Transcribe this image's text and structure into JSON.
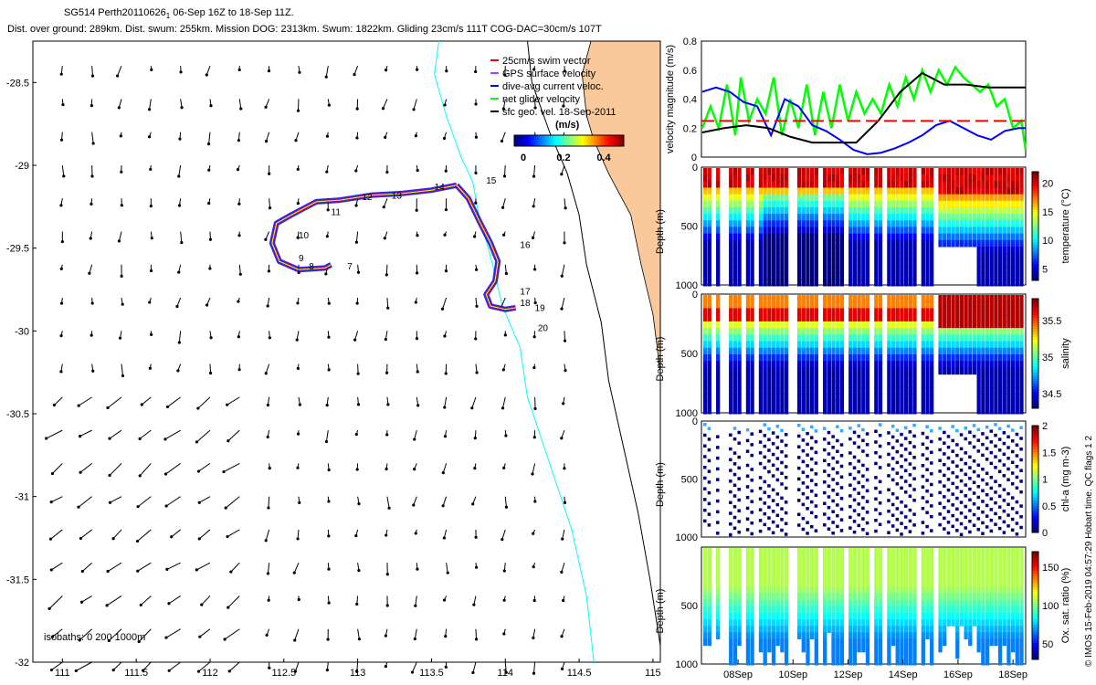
{
  "header": {
    "line1_part1": "SG514 Perth20110626",
    "line1_sub": "1",
    "line1_part2": " 06-Sep 16Z to 18-Sep 11Z.",
    "line2": "Dist. over ground: 289km. Dist. swum: 255km. Mission DOG: 2313km. Swum: 1822km. Gliding 23cm/s 111T COG-DAC=30cm/s 107T"
  },
  "credit": "© IMOS 15-Feb-2019 04:57:29 Hobart time. QC flags 1  2",
  "colors": {
    "land": "#f9c99b",
    "isobath_200": "#00ffff",
    "isobath_1000": "#000000",
    "track": "#ff0000",
    "dac": "#0000ff",
    "net_velocity": "#00ff00",
    "threshold": "#ff0000"
  },
  "chart_data": [
    {
      "type": "map",
      "name": "glider-track-map",
      "xlim": [
        110.8,
        115.05
      ],
      "ylim": [
        -32.0,
        -28.25
      ],
      "x_ticks": [
        "111",
        "111.5",
        "112",
        "112.5",
        "113",
        "113.5",
        "114",
        "114.5",
        "115"
      ],
      "y_ticks": [
        "-28.5",
        "-29",
        "-29.5",
        "-30",
        "-30.5",
        "-31",
        "-31.5",
        "-32"
      ],
      "legend": [
        "25cm/s swim vector",
        "GPS surface velocity",
        "dive-avg current veloc.",
        "net glider velocity",
        "sfc geo. vel. 18-Sep-2011"
      ],
      "colorbar_label": "(m/s)",
      "colorbar_ticks": [
        "0",
        "0.2",
        "0.4"
      ],
      "isobaths_label": "isobaths: 0   200  1000m",
      "track": [
        [
          113.67,
          -29.12
        ],
        [
          113.5,
          -29.15
        ],
        [
          113.3,
          -29.17
        ],
        [
          113.1,
          -29.18
        ],
        [
          112.88,
          -29.21
        ],
        [
          112.72,
          -29.22
        ],
        [
          112.55,
          -29.3
        ],
        [
          112.45,
          -29.35
        ],
        [
          112.42,
          -29.47
        ],
        [
          112.47,
          -29.58
        ],
        [
          112.6,
          -29.63
        ],
        [
          112.78,
          -29.62
        ],
        [
          112.82,
          -29.6
        ]
      ],
      "track2": [
        [
          113.67,
          -29.12
        ],
        [
          113.75,
          -29.2
        ],
        [
          113.82,
          -29.33
        ],
        [
          113.9,
          -29.47
        ],
        [
          113.95,
          -29.58
        ],
        [
          113.93,
          -29.7
        ],
        [
          113.87,
          -29.78
        ],
        [
          113.9,
          -29.85
        ],
        [
          114.0,
          -29.87
        ],
        [
          114.07,
          -29.86
        ]
      ],
      "day_labels": [
        {
          "t": "7",
          "lon": 112.93,
          "lat": -29.63
        },
        {
          "t": "8",
          "lon": 112.67,
          "lat": -29.63
        },
        {
          "t": "9",
          "lon": 112.6,
          "lat": -29.58
        },
        {
          "t": "10",
          "lon": 112.6,
          "lat": -29.44
        },
        {
          "t": "11",
          "lon": 112.82,
          "lat": -29.3
        },
        {
          "t": "12",
          "lon": 113.03,
          "lat": -29.21
        },
        {
          "t": "13",
          "lon": 113.23,
          "lat": -29.2
        },
        {
          "t": "14",
          "lon": 113.52,
          "lat": -29.15
        },
        {
          "t": "15",
          "lon": 113.87,
          "lat": -29.11
        },
        {
          "t": "16",
          "lon": 114.1,
          "lat": -29.5
        },
        {
          "t": "17",
          "lon": 114.1,
          "lat": -29.78
        },
        {
          "t": "18",
          "lon": 114.1,
          "lat": -29.85
        },
        {
          "t": "19",
          "lon": 114.2,
          "lat": -29.88
        },
        {
          "t": "20",
          "lon": 114.22,
          "lat": -30.0
        }
      ],
      "coastline": [
        [
          114.58,
          -28.25
        ],
        [
          114.52,
          -28.45
        ],
        [
          114.55,
          -28.7
        ],
        [
          114.6,
          -28.85
        ],
        [
          114.7,
          -29.05
        ],
        [
          114.85,
          -29.3
        ],
        [
          114.92,
          -29.6
        ],
        [
          115.0,
          -29.9
        ],
        [
          115.05,
          -30.25
        ],
        [
          115.05,
          -30.5
        ]
      ],
      "shelf_200": [
        [
          113.55,
          -28.25
        ],
        [
          113.52,
          -28.45
        ],
        [
          113.6,
          -28.7
        ],
        [
          113.7,
          -28.95
        ],
        [
          113.78,
          -29.1
        ],
        [
          113.82,
          -29.3
        ],
        [
          113.9,
          -29.55
        ],
        [
          113.98,
          -29.85
        ],
        [
          114.1,
          -30.1
        ],
        [
          114.15,
          -30.4
        ],
        [
          114.3,
          -30.8
        ],
        [
          114.45,
          -31.2
        ],
        [
          114.55,
          -31.6
        ],
        [
          114.6,
          -32.0
        ]
      ],
      "slope_1000": [
        [
          114.15,
          -28.25
        ],
        [
          114.18,
          -28.5
        ],
        [
          114.3,
          -28.8
        ],
        [
          114.42,
          -29.05
        ],
        [
          114.5,
          -29.3
        ],
        [
          114.55,
          -29.6
        ],
        [
          114.65,
          -29.95
        ],
        [
          114.7,
          -30.3
        ],
        [
          114.8,
          -30.7
        ],
        [
          114.9,
          -31.1
        ],
        [
          114.98,
          -31.5
        ],
        [
          115.05,
          -31.9
        ]
      ]
    },
    {
      "type": "line",
      "name": "velocity-magnitude",
      "ylabel": "velocity magnitude (m/s)",
      "ylim": [
        0,
        0.8
      ],
      "y_ticks": [
        "0",
        "0.2",
        "0.4",
        "0.6",
        "0.8"
      ],
      "x_range_days": [
        6.67,
        18.46
      ],
      "threshold": 0.25,
      "series": [
        {
          "key": "net glider velocity",
          "x": [
            6.7,
            7.0,
            7.3,
            7.6,
            7.9,
            8.1,
            8.4,
            8.7,
            9.0,
            9.3,
            9.6,
            9.9,
            10.2,
            10.5,
            10.8,
            11.1,
            11.4,
            11.7,
            12.0,
            12.3,
            12.6,
            12.9,
            13.2,
            13.5,
            13.8,
            14.1,
            14.4,
            14.7,
            15.0,
            15.3,
            15.6,
            15.9,
            16.2,
            16.5,
            16.8,
            17.1,
            17.4,
            17.7,
            18.0,
            18.3,
            18.46
          ],
          "values": [
            0.2,
            0.35,
            0.2,
            0.5,
            0.15,
            0.55,
            0.25,
            0.4,
            0.3,
            0.55,
            0.15,
            0.4,
            0.2,
            0.5,
            0.15,
            0.45,
            0.2,
            0.5,
            0.25,
            0.45,
            0.3,
            0.4,
            0.3,
            0.5,
            0.35,
            0.55,
            0.4,
            0.6,
            0.45,
            0.6,
            0.5,
            0.62,
            0.55,
            0.5,
            0.45,
            0.5,
            0.35,
            0.4,
            0.2,
            0.25,
            0.05
          ]
        },
        {
          "key": "dive-avg current veloc.",
          "x": [
            6.7,
            7.2,
            7.7,
            8.2,
            8.7,
            9.2,
            9.7,
            10.2,
            10.7,
            11.2,
            11.7,
            12.2,
            12.7,
            13.2,
            13.7,
            14.2,
            14.7,
            15.2,
            15.7,
            16.2,
            16.7,
            17.2,
            17.7,
            18.2,
            18.46
          ],
          "values": [
            0.45,
            0.48,
            0.45,
            0.38,
            0.35,
            0.15,
            0.4,
            0.35,
            0.22,
            0.18,
            0.12,
            0.05,
            0.02,
            0.03,
            0.06,
            0.1,
            0.15,
            0.22,
            0.25,
            0.2,
            0.15,
            0.12,
            0.18,
            0.2,
            0.2
          ]
        },
        {
          "key": "sfc geo. vel. 18-Sep-2011",
          "x": [
            6.7,
            7.5,
            8.3,
            9.1,
            9.9,
            10.7,
            11.5,
            12.3,
            13.1,
            13.9,
            14.7,
            15.5,
            16.3,
            17.1,
            17.9,
            18.46
          ],
          "values": [
            0.17,
            0.2,
            0.22,
            0.2,
            0.14,
            0.1,
            0.1,
            0.1,
            0.25,
            0.45,
            0.58,
            0.5,
            0.5,
            0.48,
            0.48,
            0.48
          ]
        }
      ]
    },
    {
      "type": "heatmap",
      "name": "temperature-section",
      "ylabel": "Depth (m)",
      "clabel": "temperature (°C)",
      "y_ticks": [
        "0",
        "500",
        "1000"
      ],
      "c_ticks": [
        "20",
        "15",
        "10",
        "5"
      ],
      "clim": [
        3,
        22
      ]
    },
    {
      "type": "heatmap",
      "name": "salinity-section",
      "ylabel": "Depth (m)",
      "clabel": "salinity",
      "y_ticks": [
        "0",
        "500",
        "1000"
      ],
      "c_ticks": [
        "35.5",
        "35",
        "34.5"
      ],
      "clim": [
        34.3,
        35.8
      ]
    },
    {
      "type": "heatmap",
      "name": "chla-section",
      "ylabel": "Depth (m)",
      "clabel": "chl-a (mg m-3)",
      "y_ticks": [
        "0",
        "500",
        "1000"
      ],
      "c_ticks": [
        "2",
        "1.5",
        "1",
        "0.5",
        "0"
      ],
      "clim": [
        0,
        2
      ]
    },
    {
      "type": "heatmap",
      "name": "oxygen-section",
      "ylabel": "Depth (m)",
      "clabel": "Ox. sat. ratio (%)",
      "y_ticks": [
        "500",
        "1000"
      ],
      "c_ticks": [
        "150",
        "100",
        "50"
      ],
      "clim": [
        30,
        170
      ],
      "x_ticks": [
        "08Sep",
        "10Sep",
        "12Sep",
        "14Sep",
        "16Sep",
        "18Sep"
      ]
    }
  ]
}
